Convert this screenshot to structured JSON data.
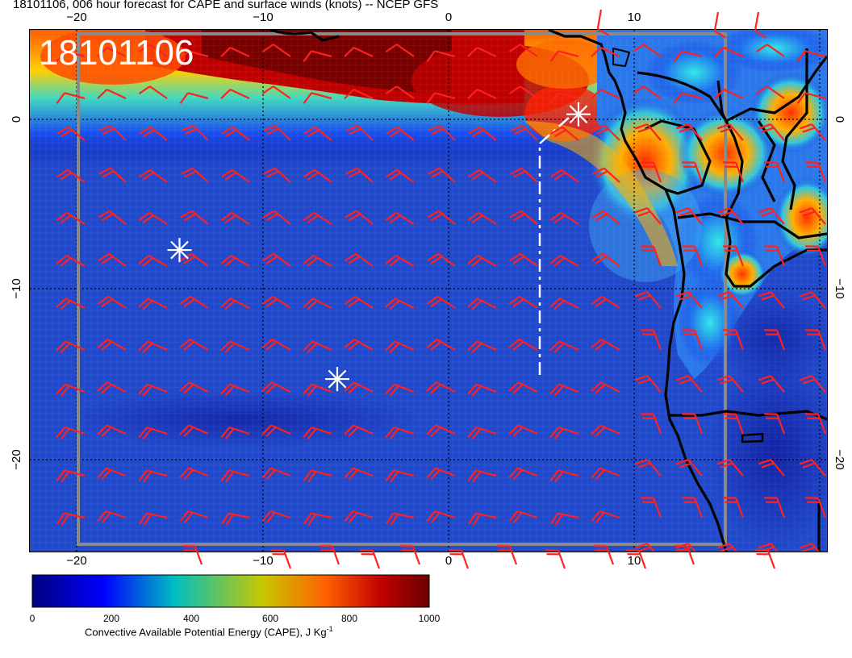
{
  "title": "18101106, 006 hour forecast for CAPE and surface winds (knots) -- NCEP GFS",
  "stamp": "18101106",
  "axes": {
    "lon_ticks": [
      "−20",
      "−10",
      "0",
      "10"
    ],
    "lat_ticks": [
      "0",
      "−10",
      "−20"
    ]
  },
  "colorbar": {
    "ticks": [
      "0",
      "200",
      "400",
      "600",
      "800",
      "1000"
    ],
    "label": "Convective Available Potential Energy (CAPE), J Kg",
    "label_sup": "-1",
    "colors": [
      "#00007f",
      "#0000ff",
      "#00bfbf",
      "#c8c800",
      "#ff6000",
      "#c00000",
      "#6a0000"
    ]
  },
  "chart_data": {
    "type": "heatmap",
    "variable": "CAPE (J/kg) with surface wind barbs (knots)",
    "lon_range": [
      -22.5,
      20.5
    ],
    "lat_range": [
      -25,
      5
    ],
    "color_range": [
      0,
      1000
    ],
    "markers": [
      {
        "lon": 7.0,
        "lat": 0.3,
        "symbol": "asterisk"
      },
      {
        "lon": -14.5,
        "lat": -7.7,
        "symbol": "asterisk"
      },
      {
        "lon": -6.0,
        "lat": -15.3,
        "symbol": "asterisk"
      }
    ],
    "track": [
      [
        5.0,
        -15.0
      ],
      [
        5.0,
        -1.0
      ],
      [
        7.0,
        0.3
      ]
    ],
    "wind_colour": "#ff2020"
  }
}
